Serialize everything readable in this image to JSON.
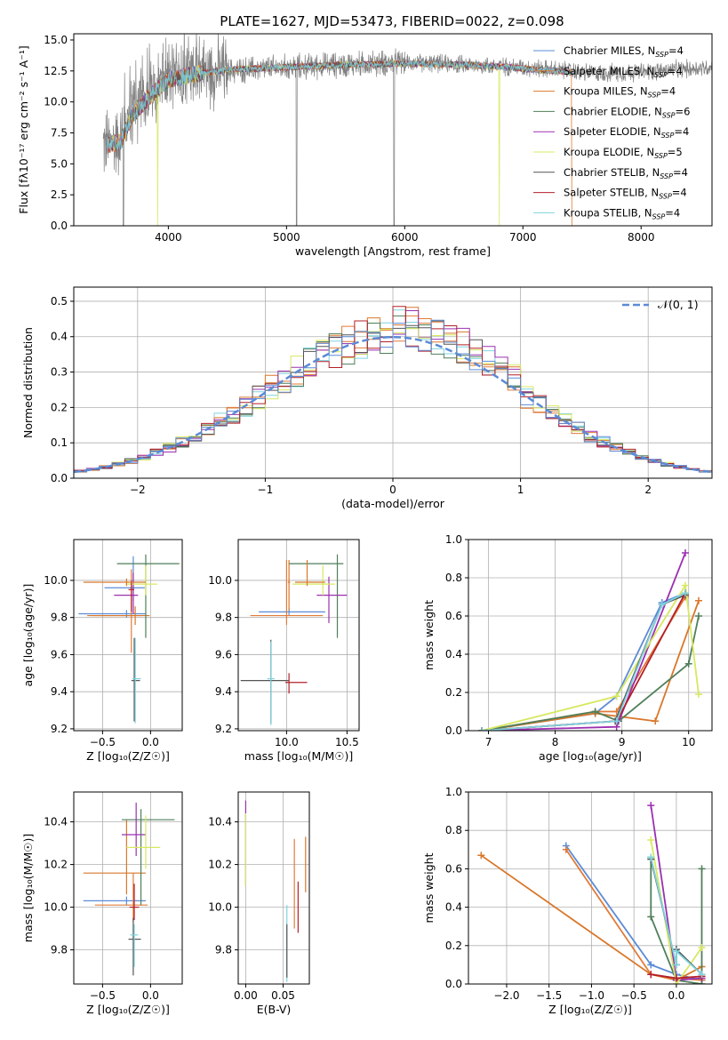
{
  "figure_title": "PLATE=1627, MJD=53473, FIBERID=0022, z=0.098",
  "legend_models": [
    {
      "label": "Chabrier MILES, N",
      "sub": "SSP",
      "tail": "=4",
      "color": "#5b8bd6"
    },
    {
      "label": "Salpeter MILES, N",
      "sub": "SSP",
      "tail": "=4",
      "color": "#e07b39"
    },
    {
      "label": "Kroupa MILES, N",
      "sub": "SSP",
      "tail": "=4",
      "color": "#d9772a"
    },
    {
      "label": "Chabrier ELODIE, N",
      "sub": "SSP",
      "tail": "=6",
      "color": "#4f7f5a"
    },
    {
      "label": "Salpeter ELODIE, N",
      "sub": "SSP",
      "tail": "=4",
      "color": "#9b30b0"
    },
    {
      "label": "Kroupa ELODIE, N",
      "sub": "SSP",
      "tail": "=5",
      "color": "#d7e860"
    },
    {
      "label": "Chabrier STELIB, N",
      "sub": "SSP",
      "tail": "=4",
      "color": "#555555"
    },
    {
      "label": "Salpeter STELIB, N",
      "sub": "SSP",
      "tail": "=4",
      "color": "#b3202a"
    },
    {
      "label": "Kroupa STELIB, N",
      "sub": "SSP",
      "tail": "=4",
      "color": "#7fd3e0"
    }
  ],
  "chart_data": [
    {
      "id": "spectrum",
      "type": "line",
      "xlabel": "wavelength [Angstrom, rest frame]",
      "ylabel": "Flux [fλ10⁻¹⁷ erg cm⁻² s⁻¹ A⁻¹]",
      "xlim": [
        3200,
        8600
      ],
      "ylim": [
        0,
        15.5
      ],
      "xticks": [
        4000,
        5000,
        6000,
        7000,
        8000
      ],
      "yticks": [
        0.0,
        2.5,
        5.0,
        7.5,
        10.0,
        12.5,
        15.0
      ],
      "grid": false,
      "legend": "right",
      "observed_continuum": {
        "x": [
          3450,
          3600,
          3700,
          3800,
          3900,
          4000,
          4200,
          4500,
          5000,
          5500,
          6000,
          6500,
          7000,
          7400,
          7600,
          8000,
          8600
        ],
        "y": [
          6.5,
          7.0,
          9.5,
          10.5,
          11.5,
          12.0,
          12.3,
          12.5,
          12.8,
          13.0,
          13.2,
          13.0,
          12.8,
          12.5,
          12.3,
          12.4,
          12.8
        ]
      },
      "model_continuum": {
        "x": [
          3480,
          3600,
          3700,
          3800,
          3900,
          4000,
          4200,
          4500,
          5000,
          5500,
          6000,
          6500,
          6900,
          7100,
          7300,
          7420
        ],
        "y": [
          6.5,
          6.8,
          9.0,
          10.0,
          11.0,
          11.8,
          12.2,
          12.6,
          12.8,
          13.0,
          13.1,
          13.0,
          12.8,
          12.6,
          12.5,
          12.4
        ]
      }
    },
    {
      "id": "residuals",
      "type": "area",
      "xlabel": "(data-model)/error",
      "ylabel": "Normed distribution",
      "xlim": [
        -2.5,
        2.5
      ],
      "ylim": [
        0,
        0.54
      ],
      "xticks": [
        -2,
        -1,
        0,
        1,
        2
      ],
      "yticks": [
        0.0,
        0.1,
        0.2,
        0.3,
        0.4,
        0.5
      ],
      "grid": true,
      "legend": "top-right",
      "gaussian_label": "𝒩(0, 1)",
      "bin_width": 0.1
    },
    {
      "id": "age-vs-Z",
      "type": "scatter",
      "xlabel": "Z [log₁₀(Z/Z☉)]",
      "ylabel": "age  [log₁₀(age/yr)]",
      "xlim": [
        -0.8,
        0.33
      ],
      "ylim": [
        9.19,
        10.22
      ],
      "xticks": [
        -0.5,
        0.0
      ],
      "yticks": [
        9.2,
        9.4,
        9.6,
        9.8,
        10.0
      ],
      "grid": true,
      "points": [
        {
          "x": -0.18,
          "y": 9.96,
          "dx": [
            0.3,
            0.12
          ],
          "dy": [
            0.07,
            0.17
          ],
          "model": 0
        },
        {
          "x": -0.25,
          "y": 9.82,
          "dx": [
            0.5,
            0.2
          ],
          "dy": [
            0.02,
            0.02
          ],
          "model": 0
        },
        {
          "x": -0.2,
          "y": 9.81,
          "dx": [
            0.4,
            0.1
          ],
          "dy": [
            0.2,
            0.25
          ],
          "model": 1
        },
        {
          "x": -0.16,
          "y": 9.81,
          "dx": [
            0.5,
            0.15
          ],
          "dy": [
            0.05,
            0.05
          ],
          "model": 2
        },
        {
          "x": -0.05,
          "y": 10.09,
          "dx": [
            0.3,
            0.35
          ],
          "dy": [
            0.4,
            0.05
          ],
          "model": 3
        },
        {
          "x": -0.18,
          "y": 9.92,
          "dx": [
            0.2,
            0.05
          ],
          "dy": [
            0.1,
            0.12
          ],
          "model": 4
        },
        {
          "x": -0.05,
          "y": 9.98,
          "dx": [
            0.2,
            0.12
          ],
          "dy": [
            0.06,
            0.1
          ],
          "model": 5
        },
        {
          "x": -0.17,
          "y": 9.46,
          "dx": [
            0.03,
            0.06
          ],
          "dy": [
            0.22,
            0.23
          ],
          "model": 6
        },
        {
          "x": -0.2,
          "y": 9.95,
          "dx": [
            0.03,
            0.03
          ],
          "dy": [
            0.12,
            0.05
          ],
          "model": 7
        },
        {
          "x": -0.16,
          "y": 9.47,
          "dx": [
            0.03,
            0.06
          ],
          "dy": [
            0.24,
            0.22
          ],
          "model": 8
        },
        {
          "x": -0.25,
          "y": 9.99,
          "dx": [
            0.45,
            0.2
          ],
          "dy": [
            0.02,
            0.02
          ],
          "model": 2
        }
      ]
    },
    {
      "id": "age-vs-mass",
      "type": "scatter",
      "xlabel": "mass [log₁₀(M/M☉)]",
      "ylabel": "",
      "xlim": [
        9.6,
        10.6
      ],
      "ylim": [
        9.19,
        10.22
      ],
      "xticks": [
        10.0,
        10.5
      ],
      "yticks": [
        9.2,
        9.4,
        9.6,
        9.8,
        10.0
      ],
      "grid": true,
      "points": [
        {
          "x": 10.02,
          "y": 9.83,
          "dx": [
            0.25,
            0.3
          ],
          "dy": [
            0.02,
            0.02
          ],
          "model": 0
        },
        {
          "x": 10.0,
          "y": 9.81,
          "dx": [
            0.3,
            0.3
          ],
          "dy": [
            0.05,
            0.3
          ],
          "model": 1
        },
        {
          "x": 10.02,
          "y": 9.99,
          "dx": [
            0.01,
            0.01
          ],
          "dy": [
            0.15,
            0.12
          ],
          "model": 2
        },
        {
          "x": 10.42,
          "y": 10.09,
          "dx": [
            0.4,
            0.05
          ],
          "dy": [
            0.4,
            0.05
          ],
          "model": 3
        },
        {
          "x": 10.35,
          "y": 9.92,
          "dx": [
            0.1,
            0.15
          ],
          "dy": [
            0.15,
            0.1
          ],
          "model": 4
        },
        {
          "x": 10.3,
          "y": 9.98,
          "dx": [
            0.25,
            0.1
          ],
          "dy": [
            0.06,
            0.1
          ],
          "model": 5
        },
        {
          "x": 9.87,
          "y": 9.46,
          "dx": [
            0.25,
            0.15
          ],
          "dy": [
            0.23,
            0.22
          ],
          "model": 6
        },
        {
          "x": 10.02,
          "y": 9.45,
          "dx": [
            0.03,
            0.15
          ],
          "dy": [
            0.06,
            0.05
          ],
          "model": 7
        },
        {
          "x": 9.87,
          "y": 9.47,
          "dx": [
            0.03,
            0.03
          ],
          "dy": [
            0.25,
            0.2
          ],
          "model": 8
        },
        {
          "x": 10.17,
          "y": 9.99,
          "dx": [
            0.1,
            0.15
          ],
          "dy": [
            0.02,
            0.12
          ],
          "model": 2
        }
      ]
    },
    {
      "id": "weight-vs-age",
      "type": "line",
      "xlabel": "age  [log₁₀(age/yr)]",
      "ylabel": "mass weight",
      "xlim": [
        6.7,
        10.35
      ],
      "ylim": [
        0,
        1.0
      ],
      "xticks": [
        7,
        8,
        9,
        10
      ],
      "yticks": [
        0.0,
        0.2,
        0.4,
        0.6,
        0.8,
        1.0
      ],
      "grid": true,
      "series": [
        {
          "model": 0,
          "x": [
            6.9,
            8.6,
            8.92,
            9.6,
            9.95
          ],
          "y": [
            0.0,
            0.09,
            0.18,
            0.67,
            0.72
          ]
        },
        {
          "model": 1,
          "x": [
            6.9,
            8.6,
            8.92,
            9.95
          ],
          "y": [
            0.0,
            0.1,
            0.1,
            0.7
          ]
        },
        {
          "model": 2,
          "x": [
            6.9,
            8.6,
            9.5,
            10.15
          ],
          "y": [
            0.0,
            0.09,
            0.05,
            0.68
          ]
        },
        {
          "model": 3,
          "x": [
            6.9,
            8.6,
            8.95,
            10.0,
            10.15
          ],
          "y": [
            0.0,
            0.1,
            0.05,
            0.35,
            0.6
          ]
        },
        {
          "model": 4,
          "x": [
            6.9,
            8.92,
            9.95
          ],
          "y": [
            0.0,
            0.02,
            0.93
          ]
        },
        {
          "model": 5,
          "x": [
            6.9,
            8.92,
            9.95,
            10.15
          ],
          "y": [
            0.0,
            0.18,
            0.76,
            0.19
          ]
        },
        {
          "model": 6,
          "x": [
            6.9,
            8.9,
            9.6,
            9.95
          ],
          "y": [
            0.0,
            0.05,
            0.66,
            0.71
          ]
        },
        {
          "model": 7,
          "x": [
            6.9,
            8.92,
            9.95
          ],
          "y": [
            0.0,
            0.05,
            0.72
          ]
        },
        {
          "model": 8,
          "x": [
            6.9,
            8.92,
            9.6,
            9.95
          ],
          "y": [
            0.0,
            0.05,
            0.66,
            0.72
          ]
        }
      ]
    },
    {
      "id": "mass-vs-Z",
      "type": "scatter",
      "xlabel": "Z [log₁₀(Z/Z☉)]",
      "ylabel": "mass [log₁₀(M/M☉)]",
      "xlim": [
        -0.8,
        0.33
      ],
      "ylim": [
        9.64,
        10.54
      ],
      "xticks": [
        -0.5,
        0.0
      ],
      "yticks": [
        9.8,
        10.0,
        10.2,
        10.4
      ],
      "grid": true,
      "points": [
        {
          "x": -0.25,
          "y": 10.03,
          "dx": [
            0.45,
            0.2
          ],
          "dy": [
            0.02,
            0.02
          ],
          "model": 0
        },
        {
          "x": -0.18,
          "y": 10.01,
          "dx": [
            0.4,
            0.15
          ],
          "dy": [
            0.08,
            0.15
          ],
          "model": 1
        },
        {
          "x": -0.25,
          "y": 10.16,
          "dx": [
            0.45,
            0.2
          ],
          "dy": [
            0.1,
            0.25
          ],
          "model": 2
        },
        {
          "x": -0.1,
          "y": 10.41,
          "dx": [
            0.2,
            0.35
          ],
          "dy": [
            0.4,
            0.05
          ],
          "model": 3
        },
        {
          "x": -0.15,
          "y": 10.34,
          "dx": [
            0.15,
            0.1
          ],
          "dy": [
            0.1,
            0.15
          ],
          "model": 4
        },
        {
          "x": -0.05,
          "y": 10.28,
          "dx": [
            0.2,
            0.15
          ],
          "dy": [
            0.1,
            0.15
          ],
          "model": 5
        },
        {
          "x": -0.18,
          "y": 9.85,
          "dx": [
            0.05,
            0.08
          ],
          "dy": [
            0.17,
            0.1
          ],
          "model": 6
        },
        {
          "x": -0.17,
          "y": 10.0,
          "dx": [
            0.05,
            0.05
          ],
          "dy": [
            0.06,
            0.11
          ],
          "model": 7
        },
        {
          "x": -0.17,
          "y": 9.87,
          "dx": [
            0.04,
            0.04
          ],
          "dy": [
            0.15,
            0.05
          ],
          "model": 8
        }
      ]
    },
    {
      "id": "mass-vs-EBV",
      "type": "scatter",
      "xlabel": "E(B-V)",
      "ylabel": "",
      "xlim": [
        -0.01,
        0.085
      ],
      "ylim": [
        9.64,
        10.54
      ],
      "xticks": [
        0.0,
        0.05
      ],
      "yticks": [
        9.8,
        10.0,
        10.2,
        10.4
      ],
      "grid": true,
      "points": [
        {
          "x": 0.0,
          "y": 10.4,
          "dx": [
            0,
            0
          ],
          "dy": [
            0.3,
            0.1
          ],
          "model": 4
        },
        {
          "x": 0.0,
          "y": 10.3,
          "dx": [
            0,
            0
          ],
          "dy": [
            0.2,
            0.14
          ],
          "model": 5
        },
        {
          "x": 0.055,
          "y": 9.85,
          "dx": [
            0,
            0
          ],
          "dy": [
            0.2,
            0.16
          ],
          "model": 8
        },
        {
          "x": 0.055,
          "y": 9.82,
          "dx": [
            0,
            0
          ],
          "dy": [
            0.15,
            0.1
          ],
          "model": 6
        },
        {
          "x": 0.065,
          "y": 10.1,
          "dx": [
            0,
            0
          ],
          "dy": [
            0.2,
            0.22
          ],
          "model": 1
        },
        {
          "x": 0.07,
          "y": 10.0,
          "dx": [
            0,
            0
          ],
          "dy": [
            0.12,
            0.12
          ],
          "model": 7
        },
        {
          "x": 0.08,
          "y": 10.2,
          "dx": [
            0,
            0
          ],
          "dy": [
            0.13,
            0.13
          ],
          "model": 2
        }
      ]
    },
    {
      "id": "weight-vs-Z",
      "type": "line",
      "xlabel": "Z [log₁₀(Z/Z☉)]",
      "ylabel": "mass weight",
      "xlim": [
        -2.45,
        0.42
      ],
      "ylim": [
        0,
        1.0
      ],
      "xticks": [
        -2.0,
        -1.5,
        -1.0,
        -0.5,
        0.0
      ],
      "yticks": [
        0.0,
        0.2,
        0.4,
        0.6,
        0.8,
        1.0
      ],
      "grid": true,
      "series": [
        {
          "model": 0,
          "x": [
            -1.3,
            -0.3,
            0.0,
            0.3
          ],
          "y": [
            0.72,
            0.1,
            0.05,
            0.02
          ]
        },
        {
          "model": 1,
          "x": [
            -1.3,
            -0.3,
            0.0,
            0.3
          ],
          "y": [
            0.7,
            0.05,
            0.03,
            0.02
          ]
        },
        {
          "model": 2,
          "x": [
            -2.3,
            -0.3,
            0.0,
            0.3
          ],
          "y": [
            0.67,
            0.05,
            0.02,
            0.09
          ]
        },
        {
          "model": 3,
          "x": [
            -0.3,
            -0.3,
            0.0,
            0.3,
            0.3
          ],
          "y": [
            0.66,
            0.35,
            0.02,
            0.0,
            0.6
          ]
        },
        {
          "model": 4,
          "x": [
            -0.3,
            0.0,
            0.3
          ],
          "y": [
            0.93,
            0.02,
            0.03
          ]
        },
        {
          "model": 5,
          "x": [
            -0.3,
            0.0,
            0.3
          ],
          "y": [
            0.75,
            0.0,
            0.19
          ]
        },
        {
          "model": 6,
          "x": [
            -0.3,
            0.0,
            0.0,
            0.3
          ],
          "y": [
            0.65,
            0.1,
            0.18,
            0.05
          ]
        },
        {
          "model": 7,
          "x": [
            -0.3,
            0.0,
            0.3
          ],
          "y": [
            0.05,
            0.03,
            0.04
          ]
        },
        {
          "model": 8,
          "x": [
            -0.3,
            0.0,
            0.0,
            0.3
          ],
          "y": [
            0.66,
            0.1,
            0.17,
            0.05
          ]
        }
      ]
    }
  ]
}
